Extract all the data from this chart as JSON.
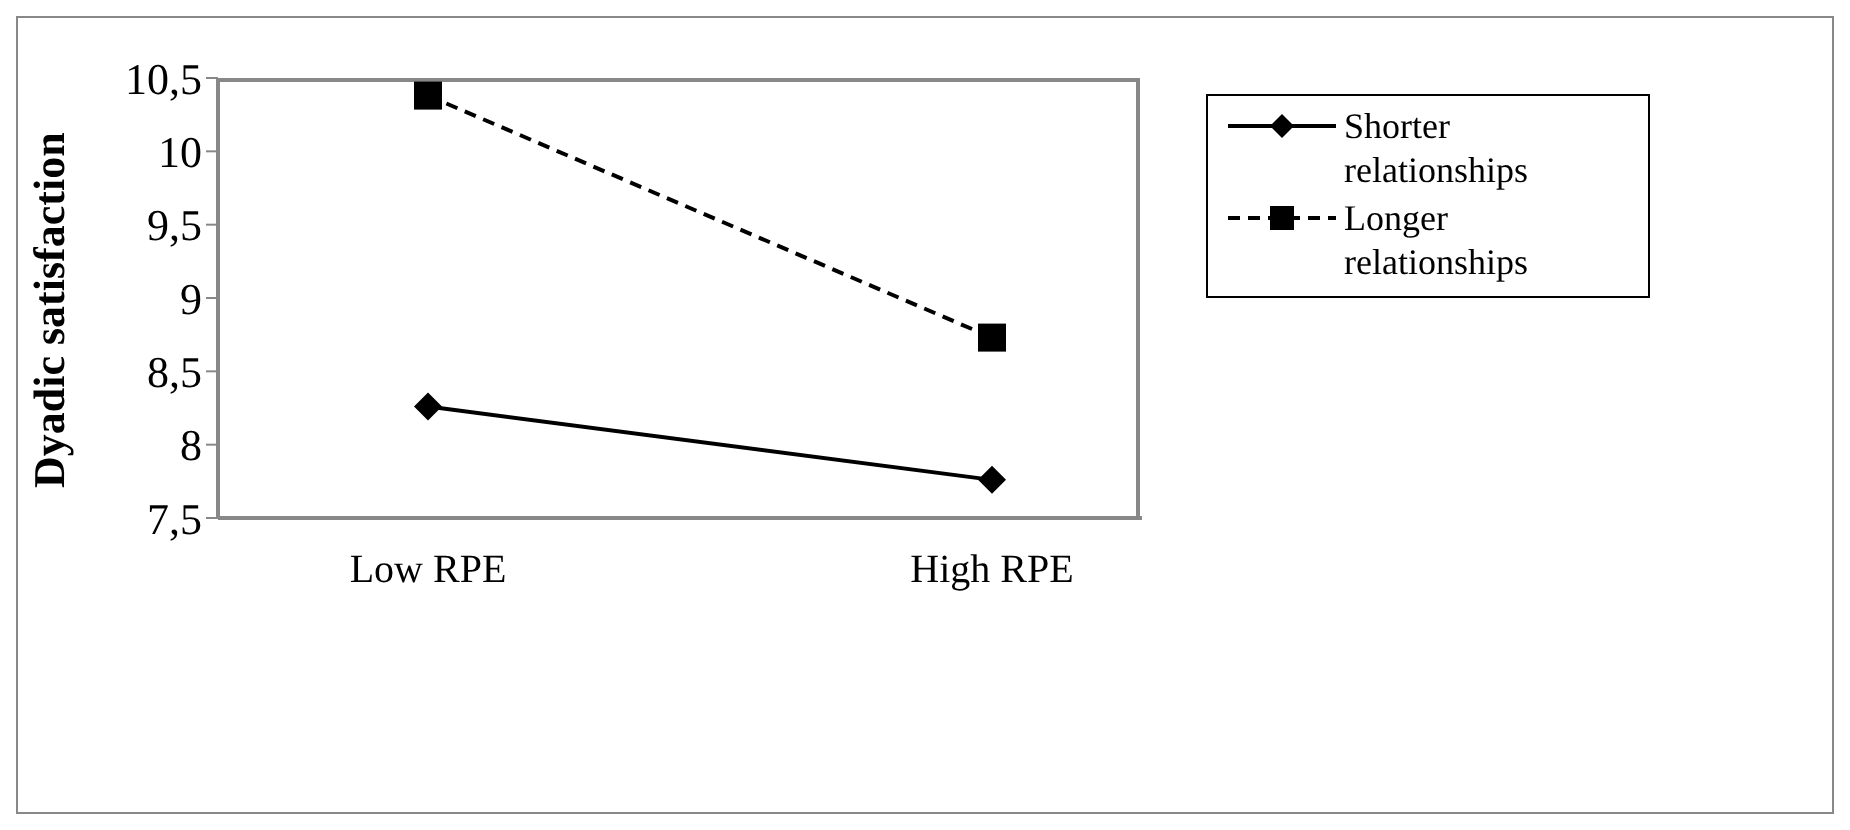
{
  "chart_data": {
    "type": "line",
    "ylabel": "Dyadic satisfaction",
    "categories": [
      "Low RPE",
      "High RPE"
    ],
    "series": [
      {
        "name": "Shorter relationships",
        "color": "#000000",
        "values": [
          8.26,
          7.76
        ],
        "marker": "diamond",
        "line_style": "solid"
      },
      {
        "name": "Longer relationships",
        "color": "#000000",
        "values": [
          10.38,
          8.73
        ],
        "marker": "square",
        "line_style": "dashed"
      }
    ],
    "ylim": [
      7.5,
      10.5
    ],
    "yticks": [
      {
        "value": 7.5,
        "label": "7,5"
      },
      8,
      {
        "value": 8.5,
        "label": "8,5"
      },
      9,
      {
        "value": 9.5,
        "label": "9,5"
      },
      10,
      {
        "value": 10.5,
        "label": "10,5"
      }
    ],
    "grid": false,
    "legend": "right"
  }
}
